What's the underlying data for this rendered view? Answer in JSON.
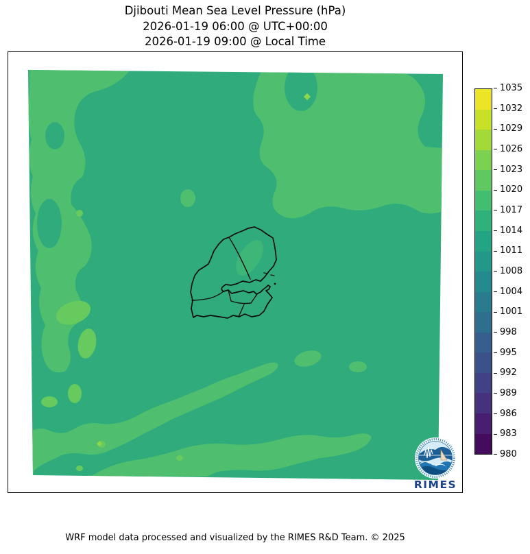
{
  "header": {
    "title": "Djibouti Mean Sea Level Pressure (hPa)",
    "subtitle_utc": "2026-01-19 06:00 @ UTC+00:00",
    "subtitle_local": "2026-01-19 09:00 @ Local Time"
  },
  "footer": {
    "credit": "WRF model data processed and visualized by the RIMES R&D Team. © 2025"
  },
  "logo": {
    "text": "RIMES"
  },
  "colors": {
    "map_main": "#30ac7c",
    "map_light": "#4fbe6e",
    "map_bright": "#66ca5e",
    "map_brightest": "#8fd64a",
    "map_faint_patch": "#3eb678",
    "boundary": "#0d0d0d",
    "logo_navy": "#1d4289",
    "logo_blue": "#2076b4",
    "logo_deep": "#0e4d7f",
    "logo_sky": "#d6ecf8"
  },
  "chart_data": {
    "type": "heatmap",
    "title": "Djibouti Mean Sea Level Pressure (hPa)",
    "valid_time_utc": "2026-01-19 06:00 @ UTC+00:00",
    "valid_time_local": "2026-01-19 09:00 @ Local Time",
    "variable": "Mean Sea Level Pressure",
    "units": "hPa",
    "region": "Djibouti",
    "overlay": "Djibouti national and regional administrative boundaries",
    "colorbar": {
      "colormap": "viridis",
      "orientation": "vertical",
      "legend_position": "right",
      "range": [
        980,
        1035
      ],
      "tick_labels_top_to_bottom": [
        "1035",
        "1032",
        "1029",
        "1026",
        "1023",
        "1020",
        "1017",
        "1014",
        "1011",
        "1008",
        "1004",
        "1001",
        "998",
        "995",
        "992",
        "989",
        "986",
        "983",
        "980"
      ],
      "segment_colors_bottom_to_top": [
        "#450b5d",
        "#471e70",
        "#45317c",
        "#414286",
        "#3b518a",
        "#35608d",
        "#2e6e8e",
        "#297c8e",
        "#248a8d",
        "#21988a",
        "#22a485",
        "#2fb17c",
        "#42be71",
        "#5fc861",
        "#7dd150",
        "#a3da37",
        "#c8e126",
        "#ebe525"
      ]
    },
    "field_summary": {
      "dominant_band_hpa": [
        1014,
        1017
      ],
      "secondary_band_hpa": [
        1017,
        1020
      ],
      "local_spot_bands_hpa": [
        1020,
        1026
      ],
      "notes": "Nearly uniform pressure field; slightly higher pressure band along western edge, upper-right area and a SW-NE band across the lower-left quadrant, with a few small higher-pressure spots."
    }
  }
}
